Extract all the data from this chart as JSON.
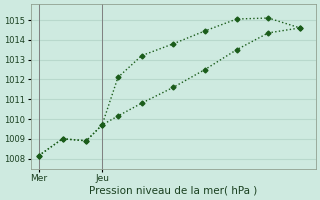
{
  "xlabel": "Pression niveau de la mer( hPa )",
  "background_color": "#ceeae0",
  "plot_bg_color": "#ceeae0",
  "grid_color": "#b8d8cc",
  "line_color": "#1a5c1a",
  "ylim": [
    1007.5,
    1015.8
  ],
  "yticks": [
    1008,
    1009,
    1010,
    1011,
    1012,
    1013,
    1014,
    1015
  ],
  "xtick_labels": [
    "Mer",
    "Jeu"
  ],
  "xtick_positions": [
    0.5,
    4.5
  ],
  "xlim": [
    0,
    18
  ],
  "vline1_x": 0.5,
  "vline2_x": 4.5,
  "line1_x": [
    0.5,
    2.0,
    3.5,
    4.5,
    5.5,
    7.0,
    9.0,
    11.0,
    13.0,
    15.0,
    17.0
  ],
  "line1_y": [
    1008.15,
    1009.0,
    1008.9,
    1009.7,
    1012.1,
    1013.2,
    1013.8,
    1014.45,
    1015.05,
    1015.1,
    1014.6
  ],
  "line2_x": [
    0.5,
    2.0,
    3.5,
    4.5,
    5.5,
    7.0,
    9.0,
    11.0,
    13.0,
    15.0,
    17.0
  ],
  "line2_y": [
    1008.15,
    1009.0,
    1008.9,
    1009.7,
    1010.15,
    1010.8,
    1011.6,
    1012.5,
    1013.5,
    1014.35,
    1014.6
  ],
  "marker": "D",
  "marker_size": 2.5,
  "line_width": 1.0,
  "ytick_fontsize": 6.0,
  "xtick_fontsize": 6.5,
  "xlabel_fontsize": 7.5
}
